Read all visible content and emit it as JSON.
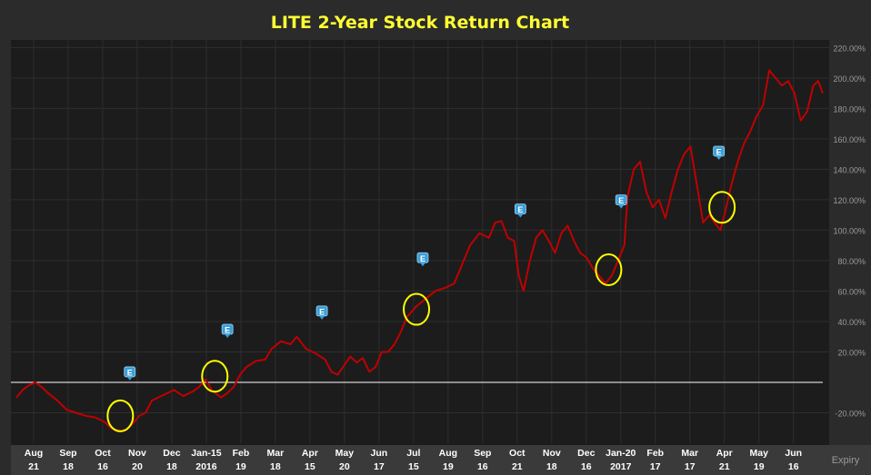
{
  "colors": {
    "background": "#2b2b2b",
    "plot_background": "#1c1c1c",
    "line": "#c00000",
    "title": "#ffff33",
    "tick_text": "#9a9a9a",
    "x_axis_bar": "#3a3a3a",
    "x_text": "#ffffff",
    "zero_line": "#ffffff",
    "grid": "#2e2e2e",
    "earnings_marker": "#3a9fd8",
    "highlight_circle": "#ffff00"
  },
  "chart_data": {
    "type": "line",
    "title": "LITE 2-Year Stock Return Chart",
    "xlabel": "",
    "ylabel": "",
    "ylim": [
      -40,
      225
    ],
    "y_ticks": [
      "-20.00%",
      "20.00%",
      "40.00%",
      "60.00%",
      "80.00%",
      "100.00%",
      "120.00%",
      "140.00%",
      "160.00%",
      "180.00%",
      "200.00%",
      "220.00%"
    ],
    "y_tick_values": [
      -20,
      20,
      40,
      60,
      80,
      100,
      120,
      140,
      160,
      180,
      200,
      220
    ],
    "zero_line": 0,
    "grid": true,
    "x_axis_name": "Expiry",
    "x_ticks": [
      {
        "top": "Aug",
        "bottom": "21"
      },
      {
        "top": "Sep",
        "bottom": "18"
      },
      {
        "top": "Oct",
        "bottom": "16"
      },
      {
        "top": "Nov",
        "bottom": "20"
      },
      {
        "top": "Dec",
        "bottom": "18"
      },
      {
        "top": "Jan-15",
        "bottom": "2016"
      },
      {
        "top": "Feb",
        "bottom": "19"
      },
      {
        "top": "Mar",
        "bottom": "18"
      },
      {
        "top": "Apr",
        "bottom": "15"
      },
      {
        "top": "May",
        "bottom": "20"
      },
      {
        "top": "Jun",
        "bottom": "17"
      },
      {
        "top": "Jul",
        "bottom": "15"
      },
      {
        "top": "Aug",
        "bottom": "19"
      },
      {
        "top": "Sep",
        "bottom": "16"
      },
      {
        "top": "Oct",
        "bottom": "21"
      },
      {
        "top": "Nov",
        "bottom": "18"
      },
      {
        "top": "Dec",
        "bottom": "16"
      },
      {
        "top": "Jan-20",
        "bottom": "2017"
      },
      {
        "top": "Feb",
        "bottom": "17"
      },
      {
        "top": "Mar",
        "bottom": "17"
      },
      {
        "top": "Apr",
        "bottom": "21"
      },
      {
        "top": "May",
        "bottom": "19"
      },
      {
        "top": "Jun",
        "bottom": "16"
      }
    ],
    "x_tick_positions": [
      0.5,
      1.5,
      2.5,
      3.5,
      4.5,
      5.5,
      6.5,
      7.5,
      8.5,
      9.5,
      10.5,
      11.5,
      12.5,
      13.5,
      14.5,
      15.5,
      16.5,
      17.5,
      18.5,
      19.5,
      20.5,
      21.5,
      22.5
    ],
    "series": [
      {
        "values": [
          [
            0.0,
            -10
          ],
          [
            0.2,
            -5
          ],
          [
            0.4,
            -2
          ],
          [
            0.6,
            0
          ],
          [
            0.8,
            -3
          ],
          [
            1.0,
            -7
          ],
          [
            1.3,
            -12
          ],
          [
            1.6,
            -18
          ],
          [
            1.9,
            -20
          ],
          [
            2.2,
            -22
          ],
          [
            2.5,
            -23
          ],
          [
            2.8,
            -26
          ],
          [
            3.0,
            -30
          ],
          [
            3.3,
            -32
          ],
          [
            3.5,
            -31
          ],
          [
            3.7,
            -27
          ],
          [
            3.9,
            -22
          ],
          [
            4.1,
            -20
          ],
          [
            4.3,
            -12
          ],
          [
            4.5,
            -10
          ],
          [
            4.8,
            -7
          ],
          [
            5.0,
            -5
          ],
          [
            5.3,
            -9
          ],
          [
            5.6,
            -6
          ],
          [
            5.8,
            -3
          ],
          [
            6.0,
            2
          ],
          [
            6.2,
            -5
          ],
          [
            6.5,
            -10
          ],
          [
            6.7,
            -7
          ],
          [
            6.9,
            -3
          ],
          [
            7.1,
            5
          ],
          [
            7.3,
            10
          ],
          [
            7.6,
            14
          ],
          [
            7.9,
            15
          ],
          [
            8.1,
            22
          ],
          [
            8.4,
            27
          ],
          [
            8.7,
            25
          ],
          [
            8.9,
            30
          ],
          [
            9.2,
            22
          ],
          [
            9.5,
            19
          ],
          [
            9.8,
            15
          ],
          [
            10.0,
            7
          ],
          [
            10.2,
            5
          ],
          [
            10.4,
            11
          ],
          [
            10.6,
            17
          ],
          [
            10.8,
            13
          ],
          [
            11.0,
            16
          ],
          [
            11.2,
            7
          ],
          [
            11.4,
            10
          ],
          [
            11.6,
            20
          ],
          [
            11.8,
            20
          ],
          [
            12.0,
            25
          ],
          [
            12.2,
            33
          ],
          [
            12.4,
            43
          ],
          [
            12.7,
            50
          ],
          [
            13.0,
            55
          ],
          [
            13.3,
            60
          ],
          [
            13.6,
            62
          ],
          [
            13.9,
            65
          ],
          [
            14.1,
            75
          ],
          [
            14.4,
            90
          ],
          [
            14.7,
            98
          ],
          [
            15.0,
            95
          ],
          [
            15.2,
            105
          ],
          [
            15.4,
            106
          ],
          [
            15.6,
            95
          ],
          [
            15.8,
            93
          ],
          [
            15.95,
            70
          ],
          [
            16.1,
            60
          ],
          [
            16.3,
            80
          ],
          [
            16.5,
            95
          ],
          [
            16.7,
            100
          ],
          [
            16.9,
            93
          ],
          [
            17.1,
            85
          ],
          [
            17.3,
            98
          ],
          [
            17.5,
            103
          ],
          [
            17.7,
            93
          ],
          [
            17.9,
            85
          ],
          [
            18.1,
            82
          ],
          [
            18.3,
            75
          ],
          [
            18.5,
            70
          ],
          [
            18.7,
            65
          ],
          [
            18.9,
            70
          ],
          [
            19.1,
            80
          ],
          [
            19.3,
            90
          ],
          [
            19.4,
            122
          ],
          [
            19.6,
            140
          ],
          [
            19.8,
            145
          ],
          [
            20.0,
            125
          ],
          [
            20.2,
            115
          ],
          [
            20.4,
            120
          ],
          [
            20.6,
            108
          ],
          [
            20.8,
            125
          ],
          [
            21.0,
            140
          ],
          [
            21.2,
            150
          ],
          [
            21.4,
            155
          ],
          [
            21.6,
            130
          ],
          [
            21.8,
            105
          ],
          [
            22.0,
            110
          ],
          [
            22.2,
            104
          ],
          [
            22.35,
            100
          ],
          [
            22.5,
            112
          ],
          [
            22.7,
            130
          ],
          [
            22.9,
            145
          ],
          [
            23.1,
            157
          ],
          [
            23.3,
            165
          ],
          [
            23.5,
            175
          ],
          [
            23.7,
            182
          ],
          [
            23.9,
            205
          ],
          [
            24.1,
            200
          ],
          [
            24.3,
            195
          ],
          [
            24.5,
            198
          ],
          [
            24.7,
            190
          ],
          [
            24.9,
            172
          ],
          [
            25.1,
            178
          ],
          [
            25.3,
            195
          ],
          [
            25.45,
            198
          ],
          [
            25.6,
            190
          ]
        ]
      }
    ],
    "earnings_markers": [
      {
        "label": "E",
        "x": 3.6,
        "y": 6
      },
      {
        "label": "E",
        "x": 6.7,
        "y": 34
      },
      {
        "label": "E",
        "x": 9.7,
        "y": 46
      },
      {
        "label": "E",
        "x": 12.9,
        "y": 81
      },
      {
        "label": "E",
        "x": 16.0,
        "y": 113
      },
      {
        "label": "E",
        "x": 19.2,
        "y": 119
      },
      {
        "label": "E",
        "x": 22.3,
        "y": 151
      }
    ],
    "highlight_circles": [
      {
        "x": 3.3,
        "y": -22
      },
      {
        "x": 6.3,
        "y": 4
      },
      {
        "x": 12.7,
        "y": 48
      },
      {
        "x": 18.8,
        "y": 74
      },
      {
        "x": 22.4,
        "y": 115
      }
    ]
  }
}
